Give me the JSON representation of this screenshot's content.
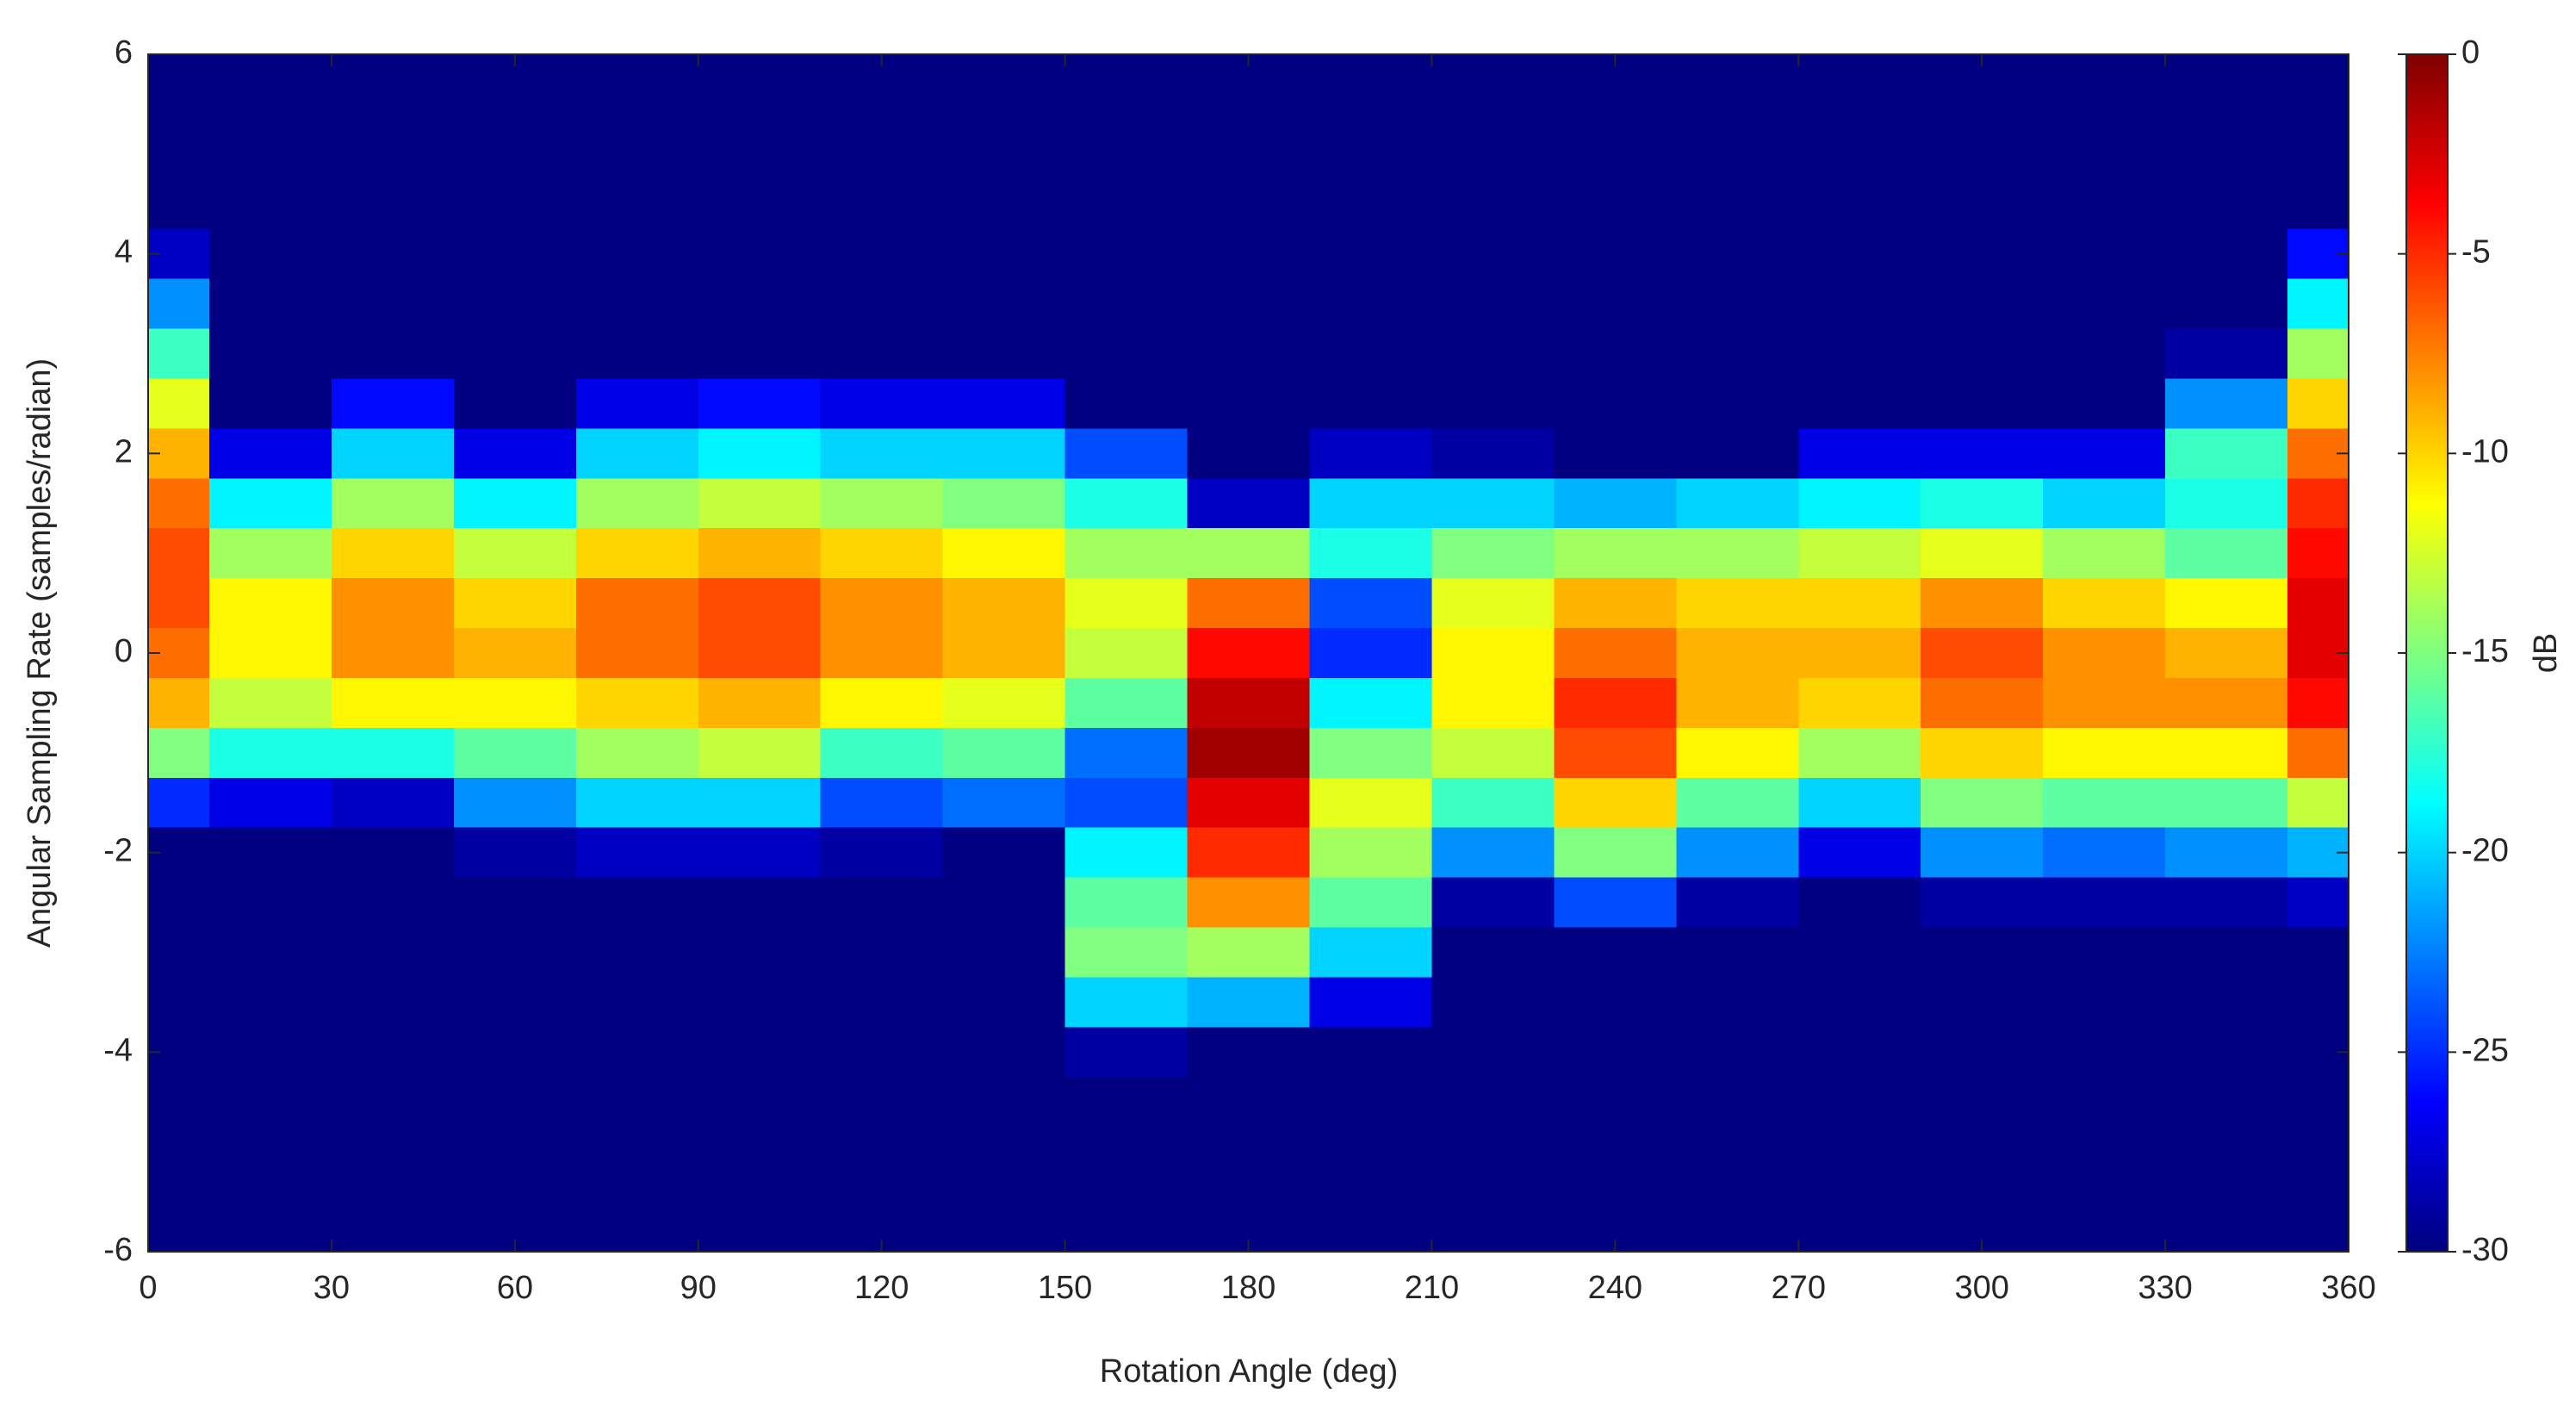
{
  "chart_data": {
    "type": "heatmap",
    "xlabel": "Rotation Angle (deg)",
    "ylabel": "Angular Sampling Rate (samples/radian)",
    "colorbar_label": "dB",
    "colormap": "jet",
    "clim": [
      -30,
      0
    ],
    "cticks": [
      -30,
      -25,
      -20,
      -15,
      -10,
      -5,
      0
    ],
    "xlim": [
      0,
      360
    ],
    "ylim": [
      -6,
      6
    ],
    "xticks": [
      0,
      30,
      60,
      90,
      120,
      150,
      180,
      210,
      240,
      270,
      300,
      330,
      360
    ],
    "yticks": [
      -6,
      -4,
      -2,
      0,
      2,
      4,
      6
    ],
    "x": [
      0,
      20,
      40,
      60,
      80,
      100,
      120,
      140,
      160,
      180,
      200,
      220,
      240,
      260,
      280,
      300,
      320,
      340,
      360
    ],
    "y": [
      6,
      5.5,
      5,
      4.5,
      4,
      3.5,
      3,
      2.5,
      2,
      1.5,
      1,
      0.5,
      0,
      -0.5,
      -1,
      -1.5,
      -2,
      -2.5,
      -3,
      -3.5,
      -4,
      -4.5,
      -5,
      -5.5,
      -6
    ],
    "z": [
      [
        -30,
        -30,
        -30,
        -30,
        -30,
        -30,
        -30,
        -30,
        -30,
        -30,
        -30,
        -30,
        -30,
        -30,
        -30,
        -30,
        -30,
        -30,
        -30
      ],
      [
        -30,
        -30,
        -30,
        -30,
        -30,
        -30,
        -30,
        -30,
        -30,
        -30,
        -30,
        -30,
        -30,
        -30,
        -30,
        -30,
        -30,
        -30,
        -30
      ],
      [
        -30,
        -30,
        -30,
        -30,
        -30,
        -30,
        -30,
        -30,
        -30,
        -30,
        -30,
        -30,
        -30,
        -30,
        -30,
        -30,
        -30,
        -30,
        -30
      ],
      [
        -30,
        -30,
        -30,
        -30,
        -30,
        -30,
        -30,
        -30,
        -30,
        -30,
        -30,
        -30,
        -30,
        -30,
        -30,
        -30,
        -30,
        -30,
        -30
      ],
      [
        -28,
        -30,
        -30,
        -30,
        -30,
        -30,
        -30,
        -30,
        -30,
        -30,
        -30,
        -30,
        -30,
        -30,
        -30,
        -30,
        -30,
        -30,
        -26
      ],
      [
        -22,
        -30,
        -30,
        -30,
        -30,
        -30,
        -30,
        -30,
        -30,
        -30,
        -30,
        -30,
        -30,
        -30,
        -30,
        -30,
        -30,
        -30,
        -19
      ],
      [
        -17,
        -30,
        -30,
        -30,
        -30,
        -30,
        -30,
        -30,
        -30,
        -30,
        -30,
        -30,
        -30,
        -30,
        -30,
        -30,
        -30,
        -29,
        -14
      ],
      [
        -12,
        -30,
        -26,
        -30,
        -27,
        -26,
        -27,
        -27,
        -30,
        -30,
        -30,
        -30,
        -30,
        -30,
        -30,
        -30,
        -30,
        -22,
        -10
      ],
      [
        -9,
        -27,
        -20,
        -27,
        -20,
        -19,
        -20,
        -20,
        -24,
        -30,
        -28,
        -29,
        -30,
        -30,
        -27,
        -27,
        -27,
        -17,
        -7
      ],
      [
        -7,
        -19,
        -14,
        -19,
        -14,
        -13,
        -14,
        -15,
        -18,
        -28,
        -20,
        -20,
        -21,
        -20,
        -19,
        -18,
        -20,
        -18,
        -5
      ],
      [
        -6,
        -14,
        -10,
        -13,
        -10,
        -9,
        -10,
        -11,
        -14,
        -14,
        -18,
        -15,
        -14,
        -14,
        -13,
        -12,
        -14,
        -16,
        -4
      ],
      [
        -6,
        -11,
        -8,
        -10,
        -7,
        -6,
        -8,
        -9,
        -12,
        -7,
        -24,
        -12,
        -9,
        -10,
        -10,
        -8,
        -10,
        -11,
        -3
      ],
      [
        -7,
        -11,
        -8,
        -9,
        -7,
        -6,
        -8,
        -9,
        -13,
        -4,
        -25,
        -11,
        -7,
        -9,
        -9,
        -6,
        -8,
        -9,
        -3
      ],
      [
        -9,
        -13,
        -11,
        -11,
        -10,
        -9,
        -11,
        -12,
        -16,
        -2,
        -19,
        -11,
        -5,
        -9,
        -10,
        -7,
        -8,
        -8,
        -4
      ],
      [
        -15,
        -18,
        -18,
        -16,
        -14,
        -13,
        -17,
        -16,
        -23,
        -1,
        -15,
        -13,
        -6,
        -11,
        -14,
        -10,
        -11,
        -11,
        -7
      ],
      [
        -25,
        -27,
        -28,
        -22,
        -20,
        -20,
        -24,
        -23,
        -24,
        -3,
        -12,
        -17,
        -10,
        -16,
        -20,
        -15,
        -16,
        -16,
        -13
      ],
      [
        -30,
        -30,
        -30,
        -29,
        -28,
        -28,
        -29,
        -30,
        -19,
        -5,
        -14,
        -22,
        -15,
        -22,
        -27,
        -22,
        -23,
        -22,
        -21
      ],
      [
        -30,
        -30,
        -30,
        -30,
        -30,
        -30,
        -30,
        -30,
        -16,
        -8,
        -16,
        -29,
        -24,
        -29,
        -30,
        -29,
        -29,
        -29,
        -28
      ],
      [
        -30,
        -30,
        -30,
        -30,
        -30,
        -30,
        -30,
        -30,
        -15,
        -14,
        -20,
        -30,
        -30,
        -30,
        -30,
        -30,
        -30,
        -30,
        -30
      ],
      [
        -30,
        -30,
        -30,
        -30,
        -30,
        -30,
        -30,
        -30,
        -20,
        -21,
        -27,
        -30,
        -30,
        -30,
        -30,
        -30,
        -30,
        -30,
        -30
      ],
      [
        -30,
        -30,
        -30,
        -30,
        -30,
        -30,
        -30,
        -30,
        -29,
        -30,
        -30,
        -30,
        -30,
        -30,
        -30,
        -30,
        -30,
        -30,
        -30
      ],
      [
        -30,
        -30,
        -30,
        -30,
        -30,
        -30,
        -30,
        -30,
        -30,
        -30,
        -30,
        -30,
        -30,
        -30,
        -30,
        -30,
        -30,
        -30,
        -30
      ],
      [
        -30,
        -30,
        -30,
        -30,
        -30,
        -30,
        -30,
        -30,
        -30,
        -30,
        -30,
        -30,
        -30,
        -30,
        -30,
        -30,
        -30,
        -30,
        -30
      ],
      [
        -30,
        -30,
        -30,
        -30,
        -30,
        -30,
        -30,
        -30,
        -30,
        -30,
        -30,
        -30,
        -30,
        -30,
        -30,
        -30,
        -30,
        -30,
        -30
      ],
      [
        -30,
        -30,
        -30,
        -30,
        -30,
        -30,
        -30,
        -30,
        -30,
        -30,
        -30,
        -30,
        -30,
        -30,
        -30,
        -30,
        -30,
        -30,
        -30
      ]
    ]
  }
}
